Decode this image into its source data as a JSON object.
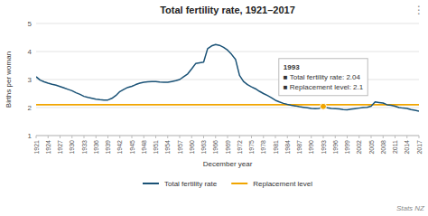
{
  "chart_data": {
    "type": "line",
    "title": "Total fertility rate, 1921–2017",
    "xlabel": "December year",
    "ylabel": "Births per woman",
    "x": [
      1921,
      1922,
      1923,
      1924,
      1925,
      1926,
      1927,
      1928,
      1929,
      1930,
      1931,
      1932,
      1933,
      1934,
      1935,
      1936,
      1937,
      1938,
      1939,
      1940,
      1941,
      1942,
      1943,
      1944,
      1945,
      1946,
      1947,
      1948,
      1949,
      1950,
      1951,
      1952,
      1953,
      1954,
      1955,
      1956,
      1957,
      1958,
      1959,
      1960,
      1961,
      1962,
      1963,
      1964,
      1965,
      1966,
      1967,
      1968,
      1969,
      1970,
      1971,
      1972,
      1973,
      1974,
      1975,
      1976,
      1977,
      1978,
      1979,
      1980,
      1981,
      1982,
      1983,
      1984,
      1985,
      1986,
      1987,
      1988,
      1989,
      1990,
      1991,
      1992,
      1993,
      1994,
      1995,
      1996,
      1997,
      1998,
      1999,
      2000,
      2001,
      2002,
      2003,
      2004,
      2005,
      2006,
      2007,
      2008,
      2009,
      2010,
      2011,
      2012,
      2013,
      2014,
      2015,
      2016,
      2017
    ],
    "series": [
      {
        "name": "Total fertility rate",
        "color": "#1a5276",
        "values": [
          3.1,
          2.98,
          2.92,
          2.87,
          2.83,
          2.8,
          2.75,
          2.7,
          2.65,
          2.6,
          2.53,
          2.47,
          2.4,
          2.36,
          2.33,
          2.3,
          2.28,
          2.27,
          2.27,
          2.33,
          2.43,
          2.57,
          2.65,
          2.72,
          2.76,
          2.82,
          2.87,
          2.9,
          2.92,
          2.93,
          2.93,
          2.91,
          2.9,
          2.9,
          2.93,
          2.96,
          3.0,
          3.1,
          3.2,
          3.38,
          3.57,
          3.6,
          3.62,
          4.1,
          4.2,
          4.25,
          4.22,
          4.15,
          4.05,
          3.9,
          3.72,
          3.15,
          2.93,
          2.82,
          2.74,
          2.67,
          2.58,
          2.5,
          2.43,
          2.35,
          2.26,
          2.2,
          2.15,
          2.11,
          2.08,
          2.06,
          2.03,
          2.01,
          1.99,
          1.97,
          1.96,
          1.97,
          2.04,
          1.99,
          1.97,
          1.96,
          1.95,
          1.93,
          1.92,
          1.94,
          1.96,
          1.98,
          2.0,
          2.01,
          2.05,
          2.2,
          2.18,
          2.16,
          2.1,
          2.08,
          2.05,
          2.0,
          1.98,
          1.97,
          1.93,
          1.9,
          1.87
        ]
      }
    ],
    "replacement_level": {
      "name": "Replacement level",
      "color": "#f0a500",
      "value": 2.1
    },
    "highlight": {
      "x": 1993,
      "y": 2.04,
      "color": "#f0a500",
      "label": [
        "1993",
        "■ Total fertility rate: 2.04",
        "■ Replacement level: 2.1"
      ]
    },
    "xlim": [
      1921,
      2017
    ],
    "xticks": [
      1921,
      1924,
      1927,
      1930,
      1933,
      1936,
      1939,
      1942,
      1945,
      1948,
      1951,
      1954,
      1957,
      1960,
      1963,
      1966,
      1969,
      1972,
      1975,
      1978,
      1981,
      1984,
      1987,
      1990,
      1993,
      1996,
      1999,
      2002,
      2005,
      2008,
      2011,
      2014,
      2017
    ],
    "ylim": [
      1,
      5
    ],
    "yticks": [
      1,
      2,
      3,
      4,
      5
    ],
    "grid": true,
    "legend": "bottom",
    "source": "Stats NZ",
    "menu": "⋮"
  }
}
